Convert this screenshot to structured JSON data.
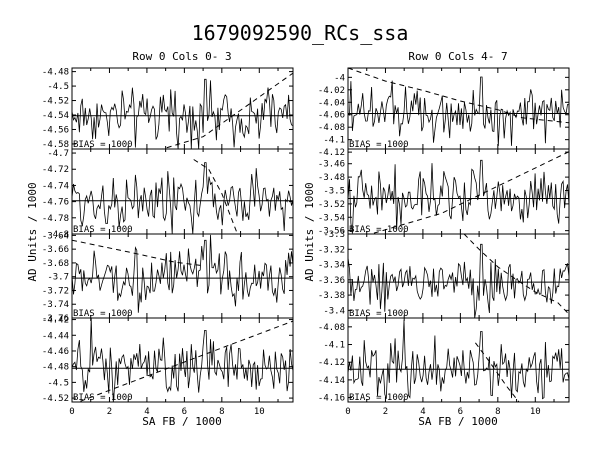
{
  "figure": {
    "title": "1679092590_RCs_ssa",
    "xlabel": "SA FB / 1000",
    "ylabel": "AD Units / 1000"
  },
  "columns": [
    {
      "title": "Row  0  Cols  0- 3"
    },
    {
      "title": "Row  0  Cols  4- 7"
    }
  ],
  "chart_data": [
    {
      "type": "line",
      "bias": "BIAS =  1000",
      "xlim": [
        0,
        11.8
      ],
      "ylim": [
        -4.587,
        -4.475
      ],
      "yticks": [
        -4.48,
        -4.5,
        -4.52,
        -4.54,
        -4.56,
        -4.58
      ],
      "baseline": -4.541,
      "dashed_x": [
        0,
        7,
        11.8
      ],
      "dashed_y": [
        -4.625,
        -4.57,
        -4.482
      ]
    },
    {
      "type": "line",
      "bias": "BIAS =  1000",
      "xlim": [
        0,
        11.8
      ],
      "ylim": [
        -4.8,
        -4.695
      ],
      "yticks": [
        -4.7,
        -4.72,
        -4.74,
        -4.76,
        -4.78,
        -4.8
      ],
      "baseline": -4.759,
      "dashed_x": [
        6.5,
        7.3,
        8,
        8.5,
        9
      ],
      "dashed_y": [
        -4.708,
        -4.72,
        -4.75,
        -4.78,
        -4.81
      ]
    },
    {
      "type": "line",
      "bias": "BIAS =  1000",
      "xlim": [
        0,
        11.8
      ],
      "ylim": [
        -3.76,
        -3.638
      ],
      "yticks": [
        -3.64,
        -3.66,
        -3.68,
        -3.7,
        -3.72,
        -3.74,
        -3.76
      ],
      "baseline": -3.702,
      "dashed_x": [
        0,
        3,
        5.5,
        7
      ],
      "dashed_y": [
        -3.647,
        -3.664,
        -3.679,
        -3.684
      ]
    },
    {
      "type": "line",
      "bias": "BIAS =  1000",
      "xlim": [
        0,
        11.8
      ],
      "ylim": [
        -4.525,
        -4.418
      ],
      "yticks": [
        -4.42,
        -4.44,
        -4.46,
        -4.48,
        -4.5,
        -4.52
      ],
      "baseline": -4.482,
      "dashed_x": [
        0,
        11.8
      ],
      "dashed_y": [
        -4.528,
        -4.422
      ]
    },
    {
      "type": "line",
      "bias": "BIAS =  1000",
      "xlim": [
        0,
        11.8
      ],
      "ylim": [
        -4.115,
        -3.985
      ],
      "yticks": [
        -4,
        -4.02,
        -4.04,
        -4.06,
        -4.08,
        -4.1,
        -4.12
      ],
      "baseline": -4.058,
      "dashed_x": [
        0,
        2,
        4,
        6,
        7,
        8,
        9.3,
        11.8
      ],
      "dashed_y": [
        -3.985,
        -4.006,
        -4.021,
        -4.038,
        -4.045,
        -4.052,
        -4.065,
        -4.073
      ]
    },
    {
      "type": "line",
      "bias": "BIAS =  1000",
      "xlim": [
        0,
        11.8
      ],
      "ylim": [
        -3.565,
        -3.438
      ],
      "yticks": [
        -3.46,
        -3.48,
        -3.5,
        -3.52,
        -3.54,
        -3.56
      ],
      "baseline": -3.512,
      "dashed_x": [
        0,
        5,
        11.8
      ],
      "dashed_y": [
        -3.575,
        -3.534,
        -3.442
      ]
    },
    {
      "type": "line",
      "bias": "BIAS =  1000",
      "xlim": [
        0,
        11.8
      ],
      "ylim": [
        -3.41,
        -3.3
      ],
      "yticks": [
        -3.3,
        -3.32,
        -3.34,
        -3.36,
        -3.38,
        -3.4
      ],
      "baseline": -3.363,
      "dashed_x": [
        6.2,
        7,
        8,
        9,
        10,
        11.2,
        11.8
      ],
      "dashed_y": [
        -3.3,
        -3.32,
        -3.343,
        -3.36,
        -3.376,
        -3.39,
        -3.405
      ]
    },
    {
      "type": "line",
      "bias": "BIAS =  1000",
      "xlim": [
        0,
        11.8
      ],
      "ylim": [
        -4.165,
        -4.07
      ],
      "yticks": [
        -4.08,
        -4.1,
        -4.12,
        -4.14,
        -4.16
      ],
      "baseline": -4.128,
      "dashed_x": [
        6.8,
        7.5,
        8.5,
        9.5
      ],
      "dashed_y": [
        -4.098,
        -4.118,
        -4.148,
        -4.175
      ]
    }
  ]
}
